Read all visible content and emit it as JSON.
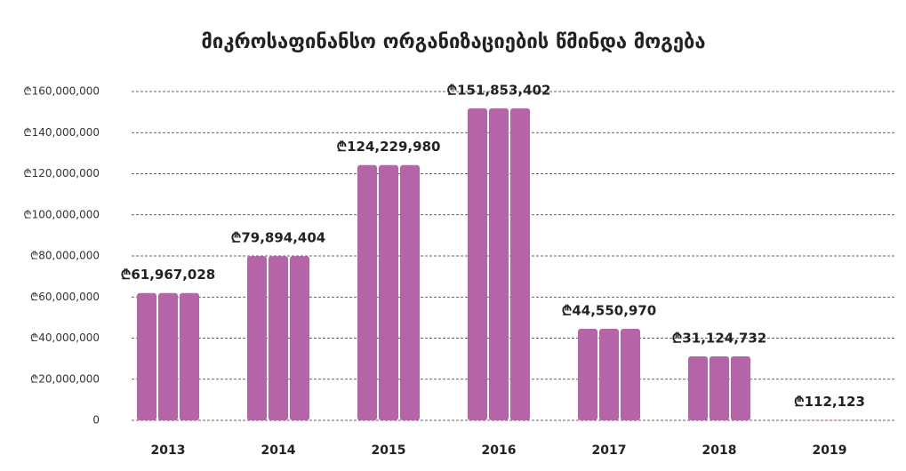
{
  "chart_data": {
    "type": "bar",
    "title": "მიკროსაფინანსო ორგანიზაციების წმინდა მოგება",
    "categories": [
      "2013",
      "2014",
      "2015",
      "2016",
      "2017",
      "2018",
      "2019"
    ],
    "values": [
      61967028,
      79894404,
      124229980,
      151853402,
      44550970,
      31124732,
      112123
    ],
    "value_labels": [
      "₾61,967,028",
      "₾79,894,404",
      "₾124,229,980",
      "₾151,853,402",
      "₾44,550,970",
      "₾31,124,732",
      "₾112,123"
    ],
    "color": "#b565a7",
    "ylim": [
      0,
      160000000
    ],
    "yticks": [
      0,
      {
        "value": 20000000,
        "label": "₾20,000,000"
      },
      {
        "value": 40000000,
        "label": "₾40,000,000"
      },
      {
        "value": 60000000,
        "label": "₾60,000,000"
      },
      {
        "value": 80000000,
        "label": "₾80,000,000"
      },
      {
        "value": 100000000,
        "label": "₾100,000,000"
      },
      {
        "value": 120000000,
        "label": "₾120,000,000"
      },
      {
        "value": 140000000,
        "label": "₾140,000,000"
      },
      {
        "value": 160000000,
        "label": "₾160,000,000"
      }
    ],
    "grid": true
  }
}
